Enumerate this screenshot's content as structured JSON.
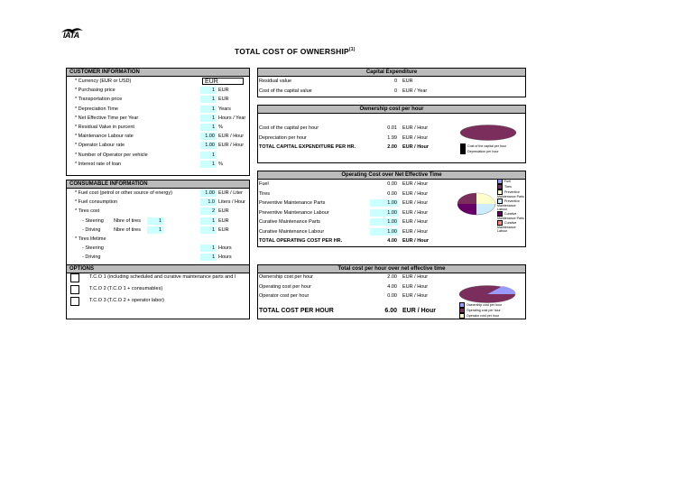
{
  "logo": {
    "text": "IATA"
  },
  "title": {
    "text": "TOTAL COST OF OWNERSHIP",
    "sup": "(1)"
  },
  "customer": {
    "header": "CUSTOMER INFORMATION",
    "rows": [
      {
        "label": "* Currency (EUR or USD)",
        "value": "EUR",
        "unit": ""
      },
      {
        "label": "* Purchasing price",
        "value": "1",
        "unit": "EUR"
      },
      {
        "label": "* Transportation price",
        "value": "1",
        "unit": "EUR"
      },
      {
        "label": "* Depreciation Time",
        "value": "1",
        "unit": "Years"
      },
      {
        "label": "* Net Effective Time per Year",
        "value": "1",
        "unit": "Hours / Year"
      },
      {
        "label": "* Residual Value in purcent",
        "value": "1",
        "unit": "%"
      },
      {
        "label": "* Maintenance Labour rate",
        "value": "1.00",
        "unit": "EUR / Hour"
      },
      {
        "label": "* Operator Labour rate",
        "value": "1.00",
        "unit": "EUR / Hour"
      },
      {
        "label": "* Number of Operator per vehicle",
        "value": "1",
        "unit": ""
      },
      {
        "label": "* Interest rate of loan",
        "value": "1",
        "unit": "%"
      }
    ]
  },
  "consumable": {
    "header": "CONSUMABLE INFORMATION",
    "rows": [
      {
        "label": "* Fuel cost (petrol or other source of energy)",
        "value": "1.00",
        "unit": "EUR / Liter"
      },
      {
        "label": "* Fuel consumption",
        "value": "1.0",
        "unit": "Liters / Hour"
      },
      {
        "label": "* Tires cost",
        "value": "2",
        "unit": "EUR"
      },
      {
        "label": "- Steering",
        "label2": "Nbre of tires",
        "n": "1",
        "value": "1",
        "unit": "EUR"
      },
      {
        "label": "- Driving",
        "label2": "Nbre of tires",
        "n": "1",
        "value": "1",
        "unit": "EUR"
      },
      {
        "label": "* Tires lifetime",
        "value": "",
        "unit": ""
      },
      {
        "label": "- Steering",
        "value": "1",
        "unit": "Hours"
      },
      {
        "label": "- Driving",
        "value": "1",
        "unit": "Hours"
      }
    ]
  },
  "options": {
    "header": "OPTIONS",
    "items": [
      "T.C.O 1 (including scheduled and curative maintenance parts and l",
      "T.C.O 2 (T.C.O 1 + consumables)",
      "T.C.O 3 (T.C.O 2 + operator labor)"
    ]
  },
  "capex": {
    "header": "Capital Expenditure",
    "rows": [
      {
        "label": "Residual value",
        "value": "0",
        "unit": "EUR"
      },
      {
        "label": "Cost of the capital value",
        "value": "0",
        "unit": "EUR / Year"
      }
    ]
  },
  "ownership": {
    "header": "Ownership cost per hour",
    "rows": [
      {
        "label": "Cost of the capital per hour",
        "value": "0.01",
        "unit": "EUR / Hour"
      },
      {
        "label": "Depreciation per hour",
        "value": "1.99",
        "unit": "EUR / Hour"
      },
      {
        "label": "TOTAL CAPITAL EXPENDITURE PER HR.",
        "value": "2.00",
        "unit": "EUR / Hour"
      }
    ],
    "legend": [
      "Cost of the capital per hour",
      "Depreciation per hour"
    ]
  },
  "operating": {
    "header": "Operating Cost over Net Effective Time",
    "rows": [
      {
        "label": "Fuel",
        "value": "0.00",
        "unit": "EUR / Hour"
      },
      {
        "label": "Tires",
        "value": "0.00",
        "unit": "EUR / Hour"
      },
      {
        "label": "Preventive Maintenance Parts",
        "value": "1.00",
        "unit": "EUR / Hour"
      },
      {
        "label": "Preventive Maintenance Labour",
        "value": "1.00",
        "unit": "EUR / Hour"
      },
      {
        "label": "Curative Maintenance Parts",
        "value": "1.00",
        "unit": "EUR / Hour"
      },
      {
        "label": "Curative Maintenance Labour",
        "value": "1.00",
        "unit": "EUR / Hour"
      },
      {
        "label": "TOTAL OPERATING COST PER HR.",
        "value": "4.00",
        "unit": "EUR / Hour"
      }
    ],
    "legend": [
      "Fuel",
      "Tires",
      "Preventive Maintenance Parts",
      "Preventive Maintenance Labour",
      "Curative Maintenance Parts",
      "Curative Maintenance Labour"
    ]
  },
  "total": {
    "header": "Total cost per hour over net effective time",
    "rows": [
      {
        "label": "Ownership cost per hour",
        "value": "2.00",
        "unit": "EUR / Hour"
      },
      {
        "label": "Operating cost per hour",
        "value": "4.00",
        "unit": "EUR / Hour"
      },
      {
        "label": "Operator cost per hour",
        "value": "0.00",
        "unit": "EUR / Hour"
      },
      {
        "label": "TOTAL COST PER HOUR",
        "value": "6.00",
        "unit": "EUR / Hour"
      }
    ],
    "legend": [
      "Ownership cost per hour",
      "Operating cost per hour",
      "Operator cost per hour"
    ]
  },
  "colors": {
    "header_grey": "#bbbbbb",
    "input_cyan": "#ccffff",
    "pie_maroon": "#7b2d5b",
    "pie_blue": "#9999ff",
    "pie_cream": "#ffffcc",
    "pie_lightcyan": "#ccecff",
    "pie_purple": "#660066"
  }
}
